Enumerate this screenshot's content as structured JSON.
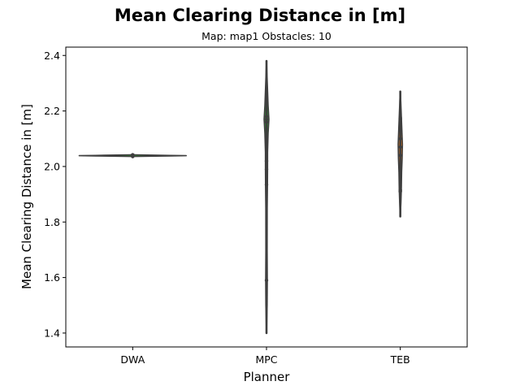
{
  "chart_data": {
    "type": "violin",
    "title": "Mean Clearing Distance in [m]",
    "subtitle": "Map: map1 Obstacles: 10",
    "xlabel": "Planner",
    "ylabel": "Mean Clearing Distance in [m]",
    "categories": [
      "DWA",
      "MPC",
      "TEB"
    ],
    "ylim": [
      1.35,
      2.43
    ],
    "yticks": [
      1.4,
      1.6,
      1.8,
      2.0,
      2.2,
      2.4
    ],
    "ytick_labels": [
      "1.4",
      "1.6",
      "1.8",
      "2.0",
      "2.2",
      "2.4"
    ],
    "grid": false,
    "violins": [
      {
        "category": "DWA",
        "color": "#2ca02c",
        "min": 2.035,
        "max": 2.043,
        "median": 2.039,
        "points": [
          2.036,
          2.038,
          2.039,
          2.04,
          2.042
        ],
        "profile": [
          [
            2.033,
            0.0
          ],
          [
            2.036,
            0.02
          ],
          [
            2.038,
            0.7
          ],
          [
            2.039,
            1.0
          ],
          [
            2.04,
            0.7
          ],
          [
            2.042,
            0.04
          ],
          [
            2.045,
            0.0
          ]
        ]
      },
      {
        "category": "MPC",
        "color": "#2ca02c",
        "min": 1.4,
        "max": 2.38,
        "median": 2.17,
        "points": [
          1.59,
          1.935,
          1.99,
          2.02,
          2.16,
          2.17,
          2.18
        ],
        "profile": [
          [
            1.4,
            0.0
          ],
          [
            1.5,
            0.012
          ],
          [
            1.59,
            0.015
          ],
          [
            1.7,
            0.012
          ],
          [
            1.85,
            0.013
          ],
          [
            1.94,
            0.018
          ],
          [
            2.0,
            0.02
          ],
          [
            2.05,
            0.02
          ],
          [
            2.12,
            0.03
          ],
          [
            2.17,
            0.045
          ],
          [
            2.22,
            0.03
          ],
          [
            2.3,
            0.015
          ],
          [
            2.38,
            0.0
          ]
        ]
      },
      {
        "category": "TEB",
        "color": "#ff7f0e",
        "min": 1.82,
        "max": 2.27,
        "median": 2.05,
        "points": [
          1.91,
          1.915,
          1.98,
          2.04,
          2.07,
          2.1,
          2.13,
          2.17,
          2.175
        ],
        "profile": [
          [
            1.82,
            0.0
          ],
          [
            1.87,
            0.012
          ],
          [
            1.92,
            0.02
          ],
          [
            1.98,
            0.025
          ],
          [
            2.03,
            0.035
          ],
          [
            2.08,
            0.04
          ],
          [
            2.13,
            0.03
          ],
          [
            2.18,
            0.02
          ],
          [
            2.23,
            0.01
          ],
          [
            2.27,
            0.0
          ]
        ]
      }
    ]
  }
}
